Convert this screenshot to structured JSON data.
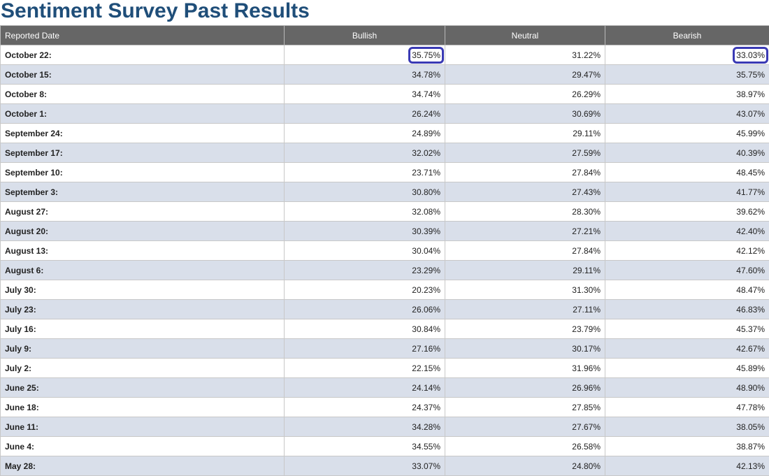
{
  "page": {
    "title": "Sentiment Survey Past Results"
  },
  "table": {
    "headers": [
      "Reported Date",
      "Bullish",
      "Neutral",
      "Bearish"
    ],
    "rows": [
      [
        "October 22:",
        "35.75%",
        "31.22%",
        "33.03%"
      ],
      [
        "October 15:",
        "34.78%",
        "29.47%",
        "35.75%"
      ],
      [
        "October 8:",
        "34.74%",
        "26.29%",
        "38.97%"
      ],
      [
        "October 1:",
        "26.24%",
        "30.69%",
        "43.07%"
      ],
      [
        "September 24:",
        "24.89%",
        "29.11%",
        "45.99%"
      ],
      [
        "September 17:",
        "32.02%",
        "27.59%",
        "40.39%"
      ],
      [
        "September 10:",
        "23.71%",
        "27.84%",
        "48.45%"
      ],
      [
        "September 3:",
        "30.80%",
        "27.43%",
        "41.77%"
      ],
      [
        "August 27:",
        "32.08%",
        "28.30%",
        "39.62%"
      ],
      [
        "August 20:",
        "30.39%",
        "27.21%",
        "42.40%"
      ],
      [
        "August 13:",
        "30.04%",
        "27.84%",
        "42.12%"
      ],
      [
        "August 6:",
        "23.29%",
        "29.11%",
        "47.60%"
      ],
      [
        "July 30:",
        "20.23%",
        "31.30%",
        "48.47%"
      ],
      [
        "July 23:",
        "26.06%",
        "27.11%",
        "46.83%"
      ],
      [
        "July 16:",
        "30.84%",
        "23.79%",
        "45.37%"
      ],
      [
        "July 9:",
        "27.16%",
        "30.17%",
        "42.67%"
      ],
      [
        "July 2:",
        "22.15%",
        "31.96%",
        "45.89%"
      ],
      [
        "June 25:",
        "24.14%",
        "26.96%",
        "48.90%"
      ],
      [
        "June 18:",
        "24.37%",
        "27.85%",
        "47.78%"
      ],
      [
        "June 11:",
        "34.28%",
        "27.67%",
        "38.05%"
      ],
      [
        "June 4:",
        "34.55%",
        "26.58%",
        "38.87%"
      ],
      [
        "May 28:",
        "33.07%",
        "24.80%",
        "42.13%"
      ]
    ]
  },
  "highlights": [
    {
      "row": 0,
      "col": 1
    },
    {
      "row": 0,
      "col": 3
    }
  ],
  "colors": {
    "title": "#1f4e79",
    "header_bg": "#666666",
    "alt_row_bg": "#d9dfea",
    "highlight_border": "#3a3ab4"
  }
}
